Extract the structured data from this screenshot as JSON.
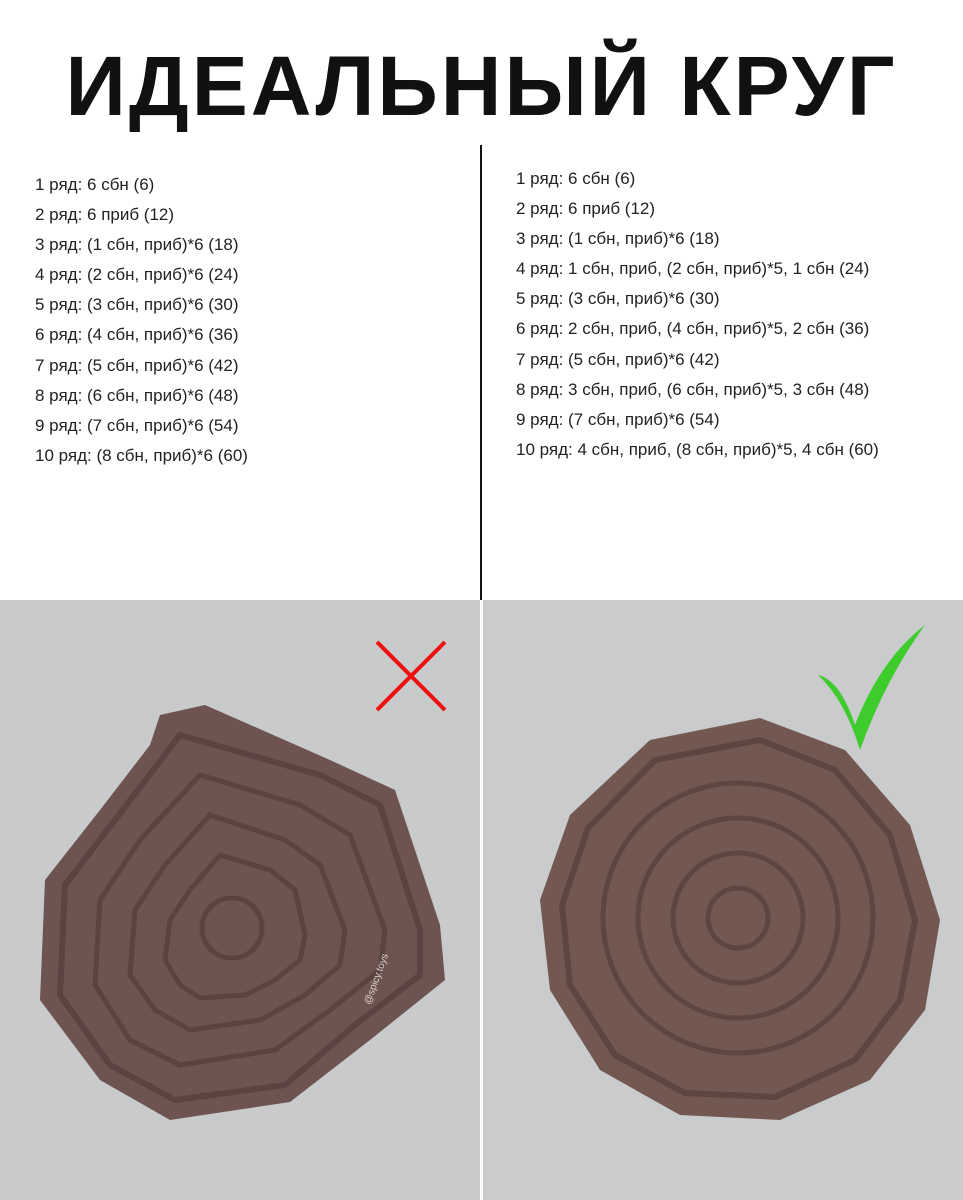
{
  "title": "ИДЕАЛЬНЫЙ КРУГ",
  "left_rows": [
    "1 ряд: 6 сбн (6)",
    "2 ряд: 6 приб (12)",
    "3 ряд: (1 сбн, приб)*6 (18)",
    "4 ряд: (2 сбн, приб)*6 (24)",
    "5 ряд: (3 сбн, приб)*6 (30)",
    "6 ряд: (4 сбн, приб)*6 (36)",
    "7 ряд: (5 сбн, приб)*6 (42)",
    "8 ряд: (6 сбн, приб)*6 (48)",
    "9 ряд: (7 сбн, приб)*6 (54)",
    "10 ряд: (8 сбн, приб)*6 (60)"
  ],
  "right_rows": [
    "1 ряд: 6 сбн (6)",
    "2 ряд: 6 приб (12)",
    "3 ряд: (1 сбн, приб)*6 (18)",
    "4 ряд: 1 сбн, приб, (2 сбн, приб)*5, 1 сбн (24)",
    "5 ряд: (3 сбн, приб)*6 (30)",
    "6 ряд: 2 сбн, приб, (4 сбн, приб)*5, 2 сбн (36)",
    "7 ряд: (5 сбн, приб)*6 (42)",
    "8 ряд: 3 сбн, приб, (6 сбн, приб)*5, 3 сбн (48)",
    "9 ряд: (7 сбн, приб)*6 (54)",
    "10 ряд: 4 сбн, приб, (8 сбн, приб)*5, 4 сбн (60)"
  ],
  "watermark": "@spicy.toys"
}
